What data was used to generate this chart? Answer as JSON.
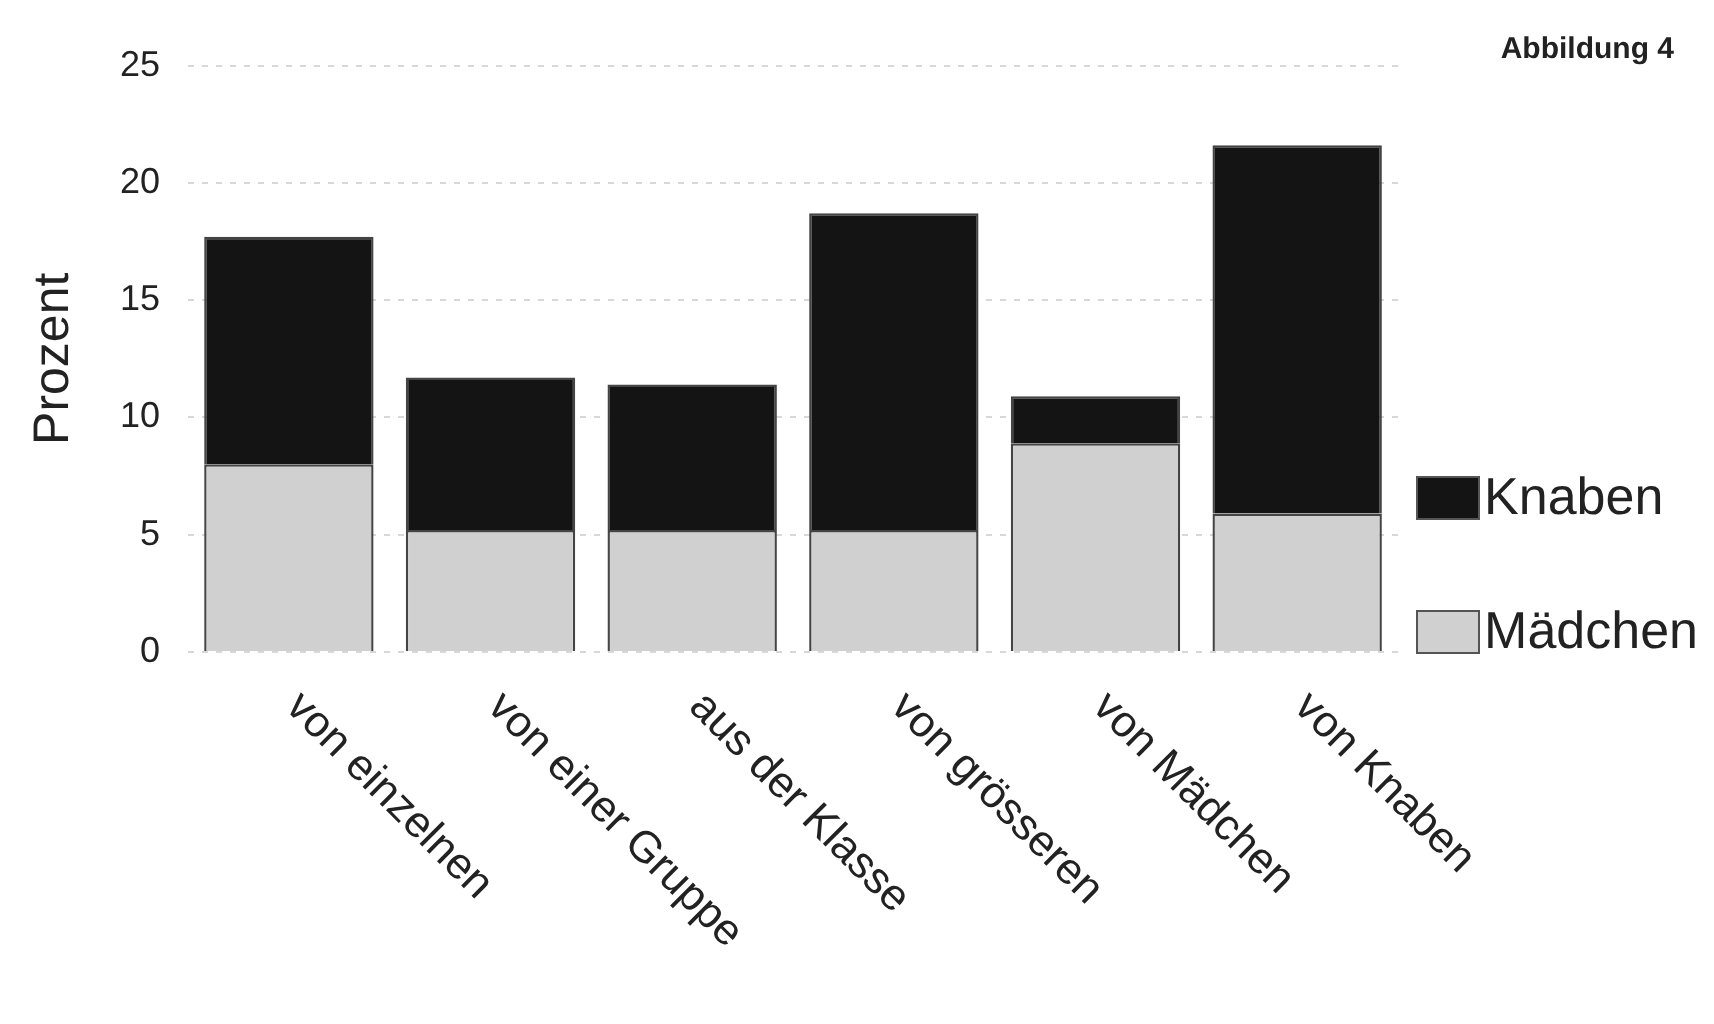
{
  "chart_data": {
    "type": "bar",
    "title": "Abbildung 4",
    "ylabel": "Prozent",
    "categories": [
      "von einzelnen",
      "von einer Gruppe",
      "aus der Klasse",
      "von grösseren",
      "von Mädchen",
      "von Knaben"
    ],
    "series": [
      {
        "name": "Mädchen",
        "color": "#d0d0d0",
        "values": [
          8.0,
          5.2,
          5.2,
          5.2,
          8.9,
          5.9
        ]
      },
      {
        "name": "Knaben",
        "color": "#141414",
        "values": [
          9.7,
          6.5,
          6.2,
          13.5,
          2.0,
          15.7
        ]
      }
    ],
    "stacked": true,
    "ylim": [
      0,
      25
    ],
    "yticks": [
      0,
      5,
      10,
      15,
      20,
      25
    ],
    "grid": "y",
    "legend": "right"
  }
}
